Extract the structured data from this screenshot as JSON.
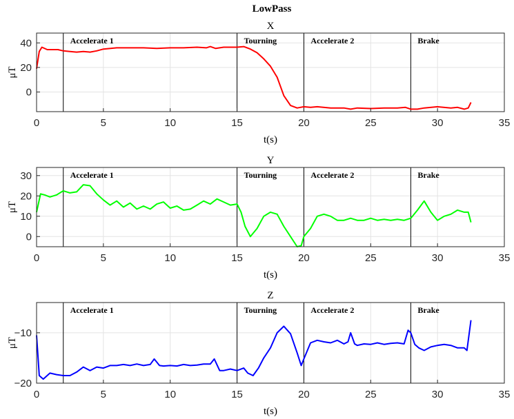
{
  "figure_title": "LowPass",
  "chart_data": [
    {
      "type": "line",
      "title": "X",
      "xlabel": "t(s)",
      "ylabel": "μT",
      "xlim": [
        0,
        35
      ],
      "ylim": [
        -16,
        48
      ],
      "xticks": [
        0,
        5,
        10,
        15,
        20,
        25,
        30,
        35
      ],
      "yticks": [
        0,
        20,
        40
      ],
      "grid": true,
      "color": "#ff0000",
      "phases": [
        {
          "t": 2,
          "label": "Accelerate 1"
        },
        {
          "t": 15,
          "label": "Tourning"
        },
        {
          "t": 20,
          "label": "Accelerate 2"
        },
        {
          "t": 28,
          "label": "Brake"
        }
      ],
      "series": [
        {
          "x": [
            0,
            0.2,
            0.4,
            0.8,
            1.2,
            1.6,
            2.0,
            2.5,
            3.0,
            3.5,
            4.0,
            4.5,
            5.0,
            6.0,
            7.0,
            8.0,
            9.0,
            10.0,
            11.0,
            12.0,
            12.7,
            13.0,
            13.4,
            14.0,
            14.5,
            15.0,
            15.5,
            16.0,
            16.5,
            17.0,
            17.5,
            18.0,
            18.5,
            19.0,
            19.5,
            20.0,
            20.5,
            21.0,
            22.0,
            23.0,
            23.5,
            24.0,
            25.0,
            26.0,
            27.0,
            27.6,
            28.0,
            28.5,
            29.0,
            30.0,
            31.0,
            31.5,
            32.0,
            32.3,
            32.5
          ],
          "y": [
            19,
            33,
            36.5,
            34.5,
            34.5,
            34.5,
            33.5,
            33,
            32.5,
            33,
            32.5,
            33.5,
            35,
            36,
            36,
            36,
            35.5,
            36,
            36,
            36.5,
            36,
            37,
            35.5,
            36.5,
            36.5,
            36.5,
            37,
            35,
            32,
            27,
            21,
            12,
            -3,
            -11,
            -13,
            -12,
            -12.5,
            -12,
            -13,
            -13,
            -14,
            -13,
            -13.5,
            -13,
            -13,
            -12.5,
            -14,
            -14,
            -13,
            -12,
            -13,
            -12.5,
            -14,
            -13,
            -8.5
          ]
        }
      ]
    },
    {
      "type": "line",
      "title": "Y",
      "xlabel": "t(s)",
      "ylabel": "μT",
      "xlim": [
        0,
        35
      ],
      "ylim": [
        -5,
        34
      ],
      "xticks": [
        0,
        5,
        10,
        15,
        20,
        25,
        30,
        35
      ],
      "yticks": [
        0,
        10,
        20,
        30
      ],
      "grid": true,
      "color": "#00ff00",
      "phases": [
        {
          "t": 2,
          "label": "Accelerate 1"
        },
        {
          "t": 15,
          "label": "Tourning"
        },
        {
          "t": 20,
          "label": "Accelerate 2"
        },
        {
          "t": 28,
          "label": "Brake"
        }
      ],
      "series": [
        {
          "x": [
            0,
            0.3,
            0.6,
            1.0,
            1.5,
            2.0,
            2.5,
            3.0,
            3.5,
            4.0,
            4.5,
            5.0,
            5.5,
            6.0,
            6.5,
            7.0,
            7.5,
            8.0,
            8.5,
            9.0,
            9.5,
            10.0,
            10.5,
            11.0,
            11.5,
            12.0,
            12.5,
            13.0,
            13.5,
            14.0,
            14.5,
            15.0,
            15.3,
            15.6,
            16.0,
            16.5,
            17.0,
            17.5,
            18.0,
            18.5,
            19.0,
            19.5,
            19.8,
            20.0,
            20.5,
            21.0,
            21.5,
            22.0,
            22.5,
            23.0,
            23.5,
            24.0,
            24.5,
            25.0,
            25.5,
            26.0,
            26.5,
            27.0,
            27.5,
            28.0,
            28.5,
            29.0,
            29.5,
            30.0,
            30.5,
            31.0,
            31.5,
            32.0,
            32.3,
            32.5
          ],
          "y": [
            12,
            21,
            20.5,
            19.5,
            20.5,
            22.5,
            21.5,
            22,
            25.5,
            25,
            21,
            18,
            15.5,
            17.5,
            14.5,
            16.5,
            13.5,
            15,
            13.5,
            16,
            17,
            14,
            15,
            13,
            13.5,
            15.5,
            17.5,
            16,
            18.5,
            17,
            15.5,
            16,
            12,
            5,
            0,
            4,
            10,
            12,
            11,
            5,
            0,
            -5,
            -4.5,
            0,
            4,
            10,
            11,
            10,
            8,
            8,
            9,
            8,
            8,
            9,
            8,
            8.5,
            8,
            8.5,
            8,
            9,
            13,
            17.5,
            12,
            8,
            10,
            11,
            13,
            12,
            12,
            7
          ]
        }
      ]
    },
    {
      "type": "line",
      "title": "Z",
      "xlabel": "t(s)",
      "ylabel": "μT",
      "xlim": [
        0,
        35
      ],
      "ylim": [
        -20,
        -4
      ],
      "xticks": [
        0,
        5,
        10,
        15,
        20,
        25,
        30,
        35
      ],
      "yticks": [
        -20,
        -10
      ],
      "grid": true,
      "color": "#0000ff",
      "phases": [
        {
          "t": 2,
          "label": "Accelerate 1"
        },
        {
          "t": 15,
          "label": "Tourning"
        },
        {
          "t": 20,
          "label": "Accelerate 2"
        },
        {
          "t": 28,
          "label": "Brake"
        }
      ],
      "series": [
        {
          "x": [
            0,
            0.2,
            0.5,
            1.0,
            1.5,
            2.0,
            2.5,
            3.0,
            3.5,
            4.0,
            4.5,
            5.0,
            5.5,
            6.0,
            6.5,
            7.0,
            7.5,
            8.0,
            8.5,
            8.8,
            9.2,
            9.5,
            10.0,
            10.5,
            11.0,
            11.5,
            12.0,
            12.5,
            13.0,
            13.3,
            13.7,
            14.0,
            14.5,
            15.0,
            15.5,
            15.8,
            16.2,
            16.6,
            17.0,
            17.5,
            18.0,
            18.5,
            19.0,
            19.5,
            19.8,
            20.0,
            20.5,
            21.0,
            21.5,
            22.0,
            22.5,
            23.0,
            23.3,
            23.5,
            23.8,
            24.0,
            24.5,
            25.0,
            25.5,
            26.0,
            26.5,
            27.0,
            27.5,
            27.8,
            28.0,
            28.3,
            28.6,
            29.0,
            29.5,
            30.0,
            30.5,
            31.0,
            31.5,
            32.0,
            32.2,
            32.5
          ],
          "y": [
            -10.5,
            -18.5,
            -19.2,
            -18,
            -18.3,
            -18.5,
            -18.5,
            -17.8,
            -16.8,
            -17.5,
            -16.8,
            -17,
            -16.5,
            -16.5,
            -16.3,
            -16.5,
            -16.2,
            -16.5,
            -16.3,
            -15.2,
            -16.5,
            -16.6,
            -16.5,
            -16.6,
            -16.3,
            -16.5,
            -16.4,
            -16.2,
            -16.2,
            -15.2,
            -17.5,
            -17.5,
            -17.2,
            -17.5,
            -17,
            -18,
            -18.5,
            -17,
            -15,
            -13,
            -10,
            -8.7,
            -10.2,
            -14,
            -16.5,
            -15.2,
            -12,
            -11.5,
            -11.8,
            -12,
            -11.5,
            -12.2,
            -11.8,
            -10,
            -12.2,
            -12.5,
            -12.2,
            -12.3,
            -12,
            -12.3,
            -12.1,
            -12,
            -12.2,
            -9.5,
            -10,
            -12.3,
            -13,
            -13.5,
            -12.8,
            -12.5,
            -12.3,
            -12.5,
            -13,
            -13,
            -13.5,
            -7.5
          ]
        }
      ]
    }
  ]
}
